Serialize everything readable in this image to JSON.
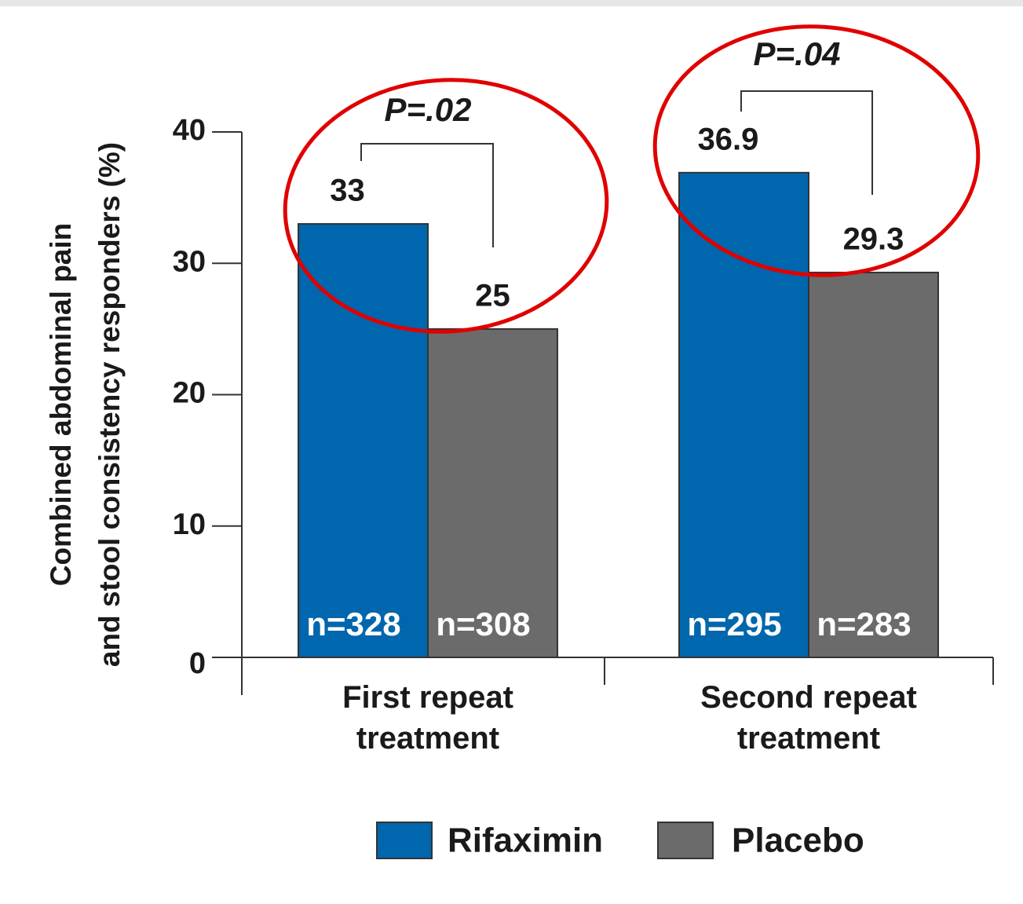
{
  "chart_data": {
    "type": "bar",
    "ylabel": [
      "Combined abdominal pain",
      "and stool consistency responders (%)"
    ],
    "categories": [
      "First repeat treatment",
      "Second repeat treatment"
    ],
    "series": [
      {
        "name": "Rifaximin",
        "color": "#0066ad",
        "values": [
          33,
          36.9
        ],
        "n": [
          "n=328",
          "n=295"
        ]
      },
      {
        "name": "Placebo",
        "color": "#6b6b6b",
        "values": [
          25,
          29.3
        ],
        "n": [
          "n=308",
          "n=283"
        ]
      }
    ],
    "annotations": [
      "P=.02",
      "P=.04"
    ],
    "ylim": [
      0,
      40
    ],
    "yticks": [
      0,
      10,
      20,
      30,
      40
    ]
  }
}
